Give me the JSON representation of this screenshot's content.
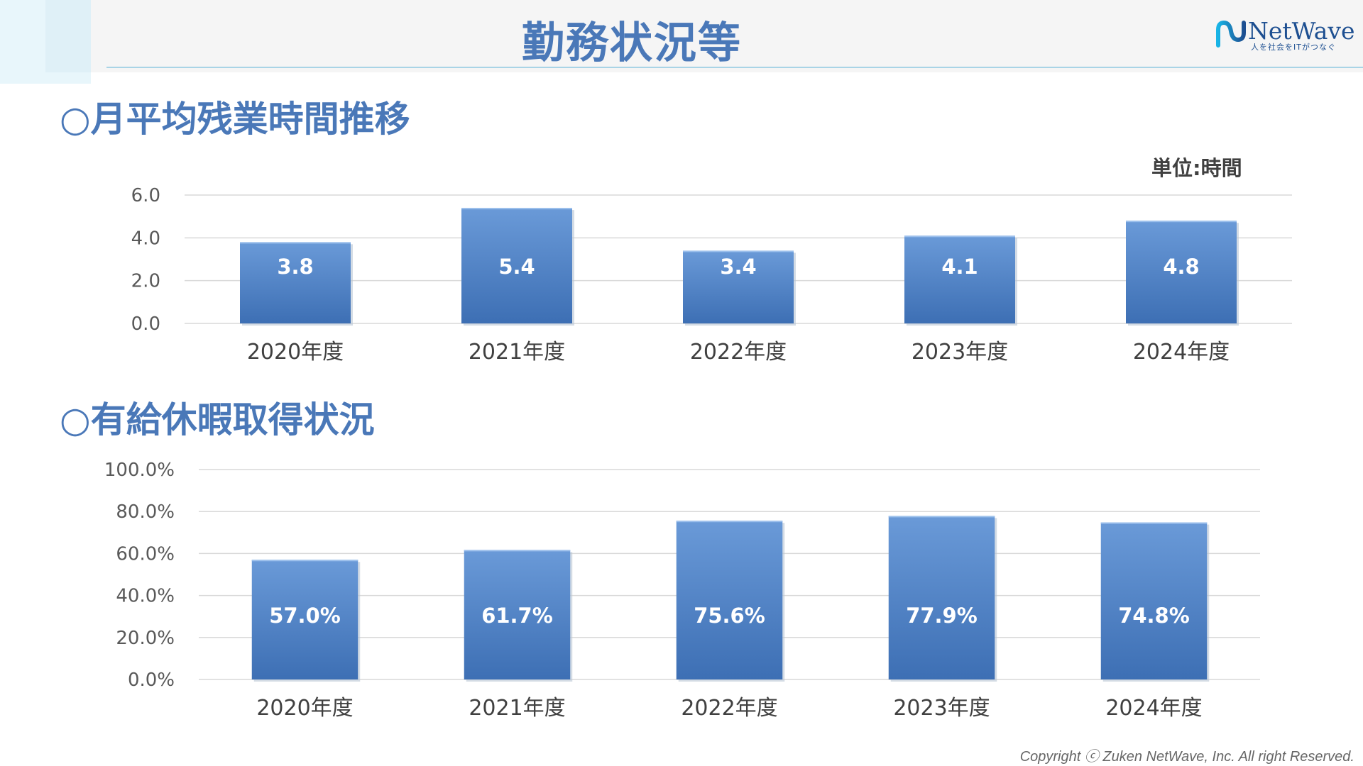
{
  "header": {
    "title": "勤務状況等",
    "logo": {
      "name": "NetWave",
      "tagline": "人を社会をITがつなぐ"
    }
  },
  "sections": {
    "overtime_title": "○月平均残業時間推移",
    "leave_title": "○有給休暇取得状況"
  },
  "unit_label": "単位:時間",
  "footer": {
    "copyright": "Copyright ⓒ Zuken NetWave, Inc. All right Reserved."
  },
  "colors": {
    "title": "#4a78b8",
    "bar_top": "#6a9ad8",
    "bar_bottom": "#3d6fb4",
    "grid": "#d9d9d9",
    "header_line": "#a9d4e6"
  },
  "chart_data": [
    {
      "type": "bar",
      "categories": [
        "2020年度",
        "2021年度",
        "2022年度",
        "2023年度",
        "2024年度"
      ],
      "values": [
        3.8,
        5.4,
        3.4,
        4.1,
        4.8
      ],
      "data_labels": [
        "3.8",
        "5.4",
        "3.4",
        "4.1",
        "4.8"
      ],
      "yticks": [
        "0.0",
        "2.0",
        "4.0",
        "6.0"
      ],
      "ylim": [
        0,
        6
      ],
      "grid": true,
      "legend": "none"
    },
    {
      "type": "bar",
      "categories": [
        "2020年度",
        "2021年度",
        "2022年度",
        "2023年度",
        "2024年度"
      ],
      "values": [
        57.0,
        61.7,
        75.6,
        77.9,
        74.8
      ],
      "data_labels": [
        "57.0%",
        "61.7%",
        "75.6%",
        "77.9%",
        "74.8%"
      ],
      "yticks": [
        "0.0%",
        "20.0%",
        "40.0%",
        "60.0%",
        "80.0%",
        "100.0%"
      ],
      "ylim": [
        0,
        100
      ],
      "grid": true,
      "legend": "none"
    }
  ]
}
